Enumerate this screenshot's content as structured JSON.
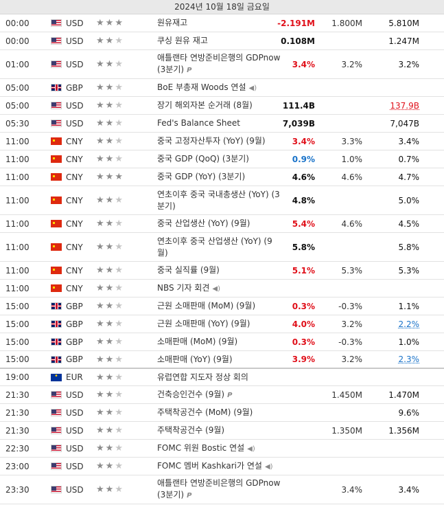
{
  "date_header": "2024년 10월 18일 금요일",
  "rows": [
    {
      "time": "00:00",
      "country": "US",
      "currency": "USD",
      "stars": 3,
      "event": "원유재고",
      "icon": "",
      "actual": "-2.191M",
      "actual_color": "red",
      "forecast": "1.800M",
      "previous": "5.810M",
      "prev_style": "normal",
      "h": 26
    },
    {
      "time": "00:00",
      "country": "US",
      "currency": "USD",
      "stars": 2,
      "event": "쿠싱 원유 재고",
      "icon": "",
      "actual": "0.108M",
      "actual_color": "black",
      "forecast": "",
      "previous": "1.247M",
      "prev_style": "normal",
      "h": 26
    },
    {
      "time": "01:00",
      "country": "US",
      "currency": "USD",
      "stars": 2,
      "event": "애틀랜타 연방준비은행의 GDPnow (3분기)",
      "icon": "prelim",
      "actual": "3.4%",
      "actual_color": "red",
      "forecast": "3.2%",
      "previous": "3.2%",
      "prev_style": "normal",
      "h": 42
    },
    {
      "time": "05:00",
      "country": "GB",
      "currency": "GBP",
      "stars": 2,
      "event": "BoE 부총재 Woods 연설",
      "icon": "sound",
      "actual": "",
      "actual_color": "black",
      "forecast": "",
      "previous": "",
      "prev_style": "normal",
      "h": 26
    },
    {
      "time": "05:00",
      "country": "US",
      "currency": "USD",
      "stars": 2,
      "event": "장기 해외자본 순거래 (8월)",
      "icon": "",
      "actual": "111.4B",
      "actual_color": "black",
      "forecast": "",
      "previous": "137.9B",
      "prev_style": "red-ul",
      "h": 26
    },
    {
      "time": "05:30",
      "country": "US",
      "currency": "USD",
      "stars": 2,
      "event": "Fed's Balance Sheet",
      "icon": "",
      "actual": "7,039B",
      "actual_color": "black",
      "forecast": "",
      "previous": "7,047B",
      "prev_style": "normal",
      "h": 26
    },
    {
      "time": "11:00",
      "country": "CN",
      "currency": "CNY",
      "stars": 2,
      "event": "중국 고정자산투자 (YoY) (9월)",
      "icon": "",
      "actual": "3.4%",
      "actual_color": "red",
      "forecast": "3.3%",
      "previous": "3.4%",
      "prev_style": "normal",
      "h": 26
    },
    {
      "time": "11:00",
      "country": "CN",
      "currency": "CNY",
      "stars": 2,
      "event": "중국 GDP (QoQ) (3분기)",
      "icon": "",
      "actual": "0.9%",
      "actual_color": "blue",
      "forecast": "1.0%",
      "previous": "0.7%",
      "prev_style": "normal",
      "h": 26
    },
    {
      "time": "11:00",
      "country": "CN",
      "currency": "CNY",
      "stars": 3,
      "event": "중국 GDP (YoY) (3분기)",
      "icon": "",
      "actual": "4.6%",
      "actual_color": "black",
      "forecast": "4.6%",
      "previous": "4.7%",
      "prev_style": "normal",
      "h": 26
    },
    {
      "time": "11:00",
      "country": "CN",
      "currency": "CNY",
      "stars": 2,
      "event": "연초이후 중국 국내총생산 (YoY) (3분기)",
      "icon": "",
      "actual": "4.8%",
      "actual_color": "black",
      "forecast": "",
      "previous": "5.0%",
      "prev_style": "normal",
      "h": 42
    },
    {
      "time": "11:00",
      "country": "CN",
      "currency": "CNY",
      "stars": 2,
      "event": "중국 산업생산 (YoY) (9월)",
      "icon": "",
      "actual": "5.4%",
      "actual_color": "red",
      "forecast": "4.6%",
      "previous": "4.5%",
      "prev_style": "normal",
      "h": 26
    },
    {
      "time": "11:00",
      "country": "CN",
      "currency": "CNY",
      "stars": 2,
      "event": "연초이후 중국 산업생산 (YoY) (9월)",
      "icon": "",
      "actual": "5.8%",
      "actual_color": "black",
      "forecast": "",
      "previous": "5.8%",
      "prev_style": "normal",
      "h": 42
    },
    {
      "time": "11:00",
      "country": "CN",
      "currency": "CNY",
      "stars": 2,
      "event": "중국 실직률 (9월)",
      "icon": "",
      "actual": "5.1%",
      "actual_color": "red",
      "forecast": "5.3%",
      "previous": "5.3%",
      "prev_style": "normal",
      "h": 26
    },
    {
      "time": "11:00",
      "country": "CN",
      "currency": "CNY",
      "stars": 2,
      "event": "NBS 기자 회견",
      "icon": "sound",
      "actual": "",
      "actual_color": "black",
      "forecast": "",
      "previous": "",
      "prev_style": "normal",
      "h": 26
    },
    {
      "time": "15:00",
      "country": "GB",
      "currency": "GBP",
      "stars": 2,
      "event": "근원 소매판매 (MoM) (9월)",
      "icon": "",
      "actual": "0.3%",
      "actual_color": "red",
      "forecast": "-0.3%",
      "previous": "1.1%",
      "prev_style": "normal",
      "h": 26
    },
    {
      "time": "15:00",
      "country": "GB",
      "currency": "GBP",
      "stars": 2,
      "event": "근원 소매판매 (YoY) (9월)",
      "icon": "",
      "actual": "4.0%",
      "actual_color": "red",
      "forecast": "3.2%",
      "previous": "2.2%",
      "prev_style": "blue-ul",
      "h": 26
    },
    {
      "time": "15:00",
      "country": "GB",
      "currency": "GBP",
      "stars": 2,
      "event": "소매판매 (MoM) (9월)",
      "icon": "",
      "actual": "0.3%",
      "actual_color": "red",
      "forecast": "-0.3%",
      "previous": "1.0%",
      "prev_style": "normal",
      "h": 26
    },
    {
      "time": "15:00",
      "country": "GB",
      "currency": "GBP",
      "stars": 2,
      "event": "소매판매 (YoY) (9월)",
      "icon": "",
      "actual": "3.9%",
      "actual_color": "red",
      "forecast": "3.2%",
      "previous": "2.3%",
      "prev_style": "blue-ul",
      "h": 26,
      "sep": true
    },
    {
      "time": "19:00",
      "country": "EU",
      "currency": "EUR",
      "stars": 2,
      "event": "유럽연합 지도자 정상 회의",
      "icon": "",
      "actual": "",
      "actual_color": "black",
      "forecast": "",
      "previous": "",
      "prev_style": "normal",
      "h": 25
    },
    {
      "time": "21:30",
      "country": "US",
      "currency": "USD",
      "stars": 2,
      "event": "건축승인건수 (9월)",
      "icon": "prelim",
      "actual": "",
      "actual_color": "black",
      "forecast": "1.450M",
      "previous": "1.470M",
      "prev_style": "normal",
      "h": 26
    },
    {
      "time": "21:30",
      "country": "US",
      "currency": "USD",
      "stars": 2,
      "event": "주택착공건수 (MoM) (9월)",
      "icon": "",
      "actual": "",
      "actual_color": "black",
      "forecast": "",
      "previous": "9.6%",
      "prev_style": "normal",
      "h": 26
    },
    {
      "time": "21:30",
      "country": "US",
      "currency": "USD",
      "stars": 2,
      "event": "주택착공건수 (9월)",
      "icon": "",
      "actual": "",
      "actual_color": "black",
      "forecast": "1.350M",
      "previous": "1.356M",
      "prev_style": "normal",
      "h": 26
    },
    {
      "time": "22:30",
      "country": "US",
      "currency": "USD",
      "stars": 2,
      "event": "FOMC 위원 Bostic 연설",
      "icon": "sound",
      "actual": "",
      "actual_color": "black",
      "forecast": "",
      "previous": "",
      "prev_style": "normal",
      "h": 26
    },
    {
      "time": "23:00",
      "country": "US",
      "currency": "USD",
      "stars": 2,
      "event": "FOMC 멤버 Kashkari가 연설",
      "icon": "sound",
      "actual": "",
      "actual_color": "black",
      "forecast": "",
      "previous": "",
      "prev_style": "normal",
      "h": 26
    },
    {
      "time": "23:30",
      "country": "US",
      "currency": "USD",
      "stars": 2,
      "event": "애틀랜타 연방준비은행의 GDPnow (3분기)",
      "icon": "prelim",
      "actual": "",
      "actual_color": "black",
      "forecast": "3.4%",
      "previous": "3.4%",
      "prev_style": "normal",
      "h": 42
    }
  ],
  "icons": {
    "sound": "speaker-icon",
    "prelim": "preliminary-p-icon"
  }
}
